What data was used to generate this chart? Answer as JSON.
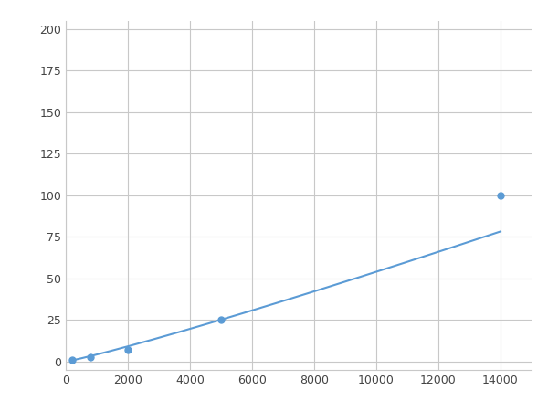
{
  "x_points": [
    200,
    800,
    2000,
    5000,
    14000
  ],
  "y_points": [
    1,
    2.5,
    7,
    25,
    100
  ],
  "line_color": "#5b9bd5",
  "marker_color": "#5b9bd5",
  "marker_size": 5,
  "line_width": 1.5,
  "xlim": [
    0,
    15000
  ],
  "ylim": [
    -5,
    205
  ],
  "xticks": [
    0,
    2000,
    4000,
    6000,
    8000,
    10000,
    12000,
    14000
  ],
  "yticks": [
    0,
    25,
    50,
    75,
    100,
    125,
    150,
    175,
    200
  ],
  "grid_color": "#c8c8c8",
  "background_color": "#ffffff",
  "plot_bg_color": "#ffffff"
}
